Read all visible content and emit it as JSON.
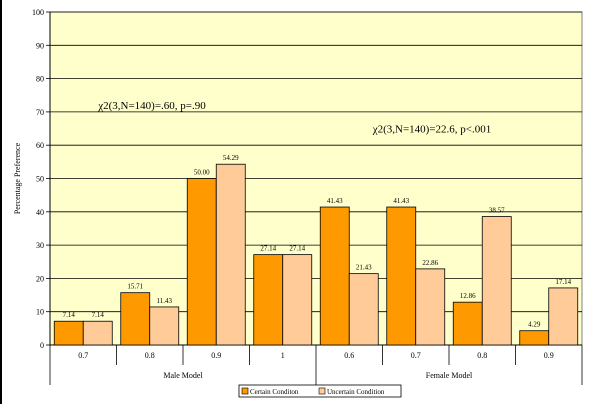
{
  "chart_data": {
    "type": "bar",
    "title": "",
    "ylabel": "Percentage Preference",
    "xlabel": "",
    "ylim": [
      0,
      100
    ],
    "yticks": [
      0,
      10,
      20,
      30,
      40,
      50,
      60,
      70,
      80,
      90,
      100
    ],
    "grid": true,
    "legend_position": "bottom",
    "categories": [
      "0.7",
      "0.8",
      "0.9",
      "1",
      "0.6",
      "0.7",
      "0.8",
      "0.9"
    ],
    "groups": [
      {
        "label": "Male Model",
        "count": 4
      },
      {
        "label": "Female Model",
        "count": 4
      }
    ],
    "series": [
      {
        "name": "Certain Conditon",
        "color": "#FF9900",
        "values": [
          7.14,
          15.71,
          50.0,
          27.14,
          41.43,
          41.43,
          12.86,
          4.29
        ],
        "labels": [
          "7.14",
          "15.71",
          "50.00",
          "27.14",
          "41.43",
          "41.43",
          "12.86",
          "4.29"
        ]
      },
      {
        "name": "Uncertain Condition",
        "color": "#FFCC99",
        "values": [
          7.14,
          11.43,
          54.29,
          27.14,
          21.43,
          22.86,
          38.57,
          17.14
        ],
        "labels": [
          "7.14",
          "11.43",
          "54.29",
          "27.14",
          "21.43",
          "22.86",
          "38.57",
          "17.14"
        ]
      }
    ],
    "annotations": [
      {
        "text": "χ2(3,N=140)=.60, p=.90",
        "value_y": 72
      },
      {
        "text": "χ2(3,N=140)=22.6, p<.001",
        "value_y": 65
      }
    ],
    "plot_background": "#FFFFCC"
  }
}
